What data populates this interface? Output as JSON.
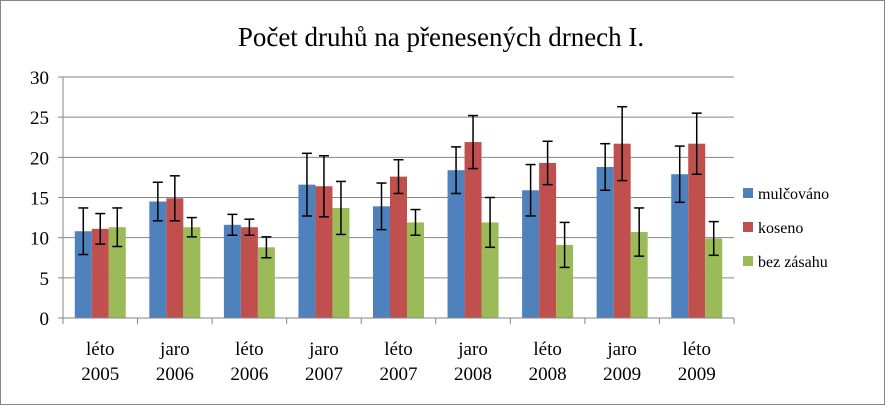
{
  "chart_data": {
    "type": "bar",
    "title": "Počet druhů na přenesených drnech I.",
    "xlabel": "",
    "ylabel": "",
    "ylim": [
      0,
      30
    ],
    "yticks": [
      0,
      5,
      10,
      15,
      20,
      25,
      30
    ],
    "grid": true,
    "legend_position": "right",
    "categories": [
      [
        "léto",
        "2005"
      ],
      [
        "jaro",
        "2006"
      ],
      [
        "léto",
        "2006"
      ],
      [
        "jaro",
        "2007"
      ],
      [
        "léto",
        "2007"
      ],
      [
        "jaro",
        "2008"
      ],
      [
        "léto",
        "2008"
      ],
      [
        "jaro",
        "2009"
      ],
      [
        "léto",
        "2009"
      ]
    ],
    "series": [
      {
        "name": "mulčováno",
        "color": "#4F81BD",
        "values": [
          10.8,
          14.5,
          11.6,
          16.6,
          13.9,
          18.4,
          15.9,
          18.8,
          17.9
        ],
        "errors": [
          2.9,
          2.4,
          1.3,
          3.9,
          2.9,
          2.9,
          3.2,
          2.9,
          3.5
        ]
      },
      {
        "name": "koseno",
        "color": "#C0504D",
        "values": [
          11.1,
          14.9,
          11.3,
          16.4,
          17.6,
          21.9,
          19.3,
          21.7,
          21.7
        ],
        "errors": [
          1.9,
          2.8,
          1.0,
          3.8,
          2.1,
          3.3,
          2.7,
          4.6,
          3.8
        ]
      },
      {
        "name": "bez zásahu",
        "color": "#9BBB59",
        "values": [
          11.3,
          11.3,
          8.8,
          13.7,
          11.9,
          11.9,
          9.1,
          10.7,
          9.9
        ],
        "errors": [
          2.4,
          1.2,
          1.3,
          3.3,
          1.6,
          3.1,
          2.8,
          3.0,
          2.1
        ]
      }
    ]
  }
}
